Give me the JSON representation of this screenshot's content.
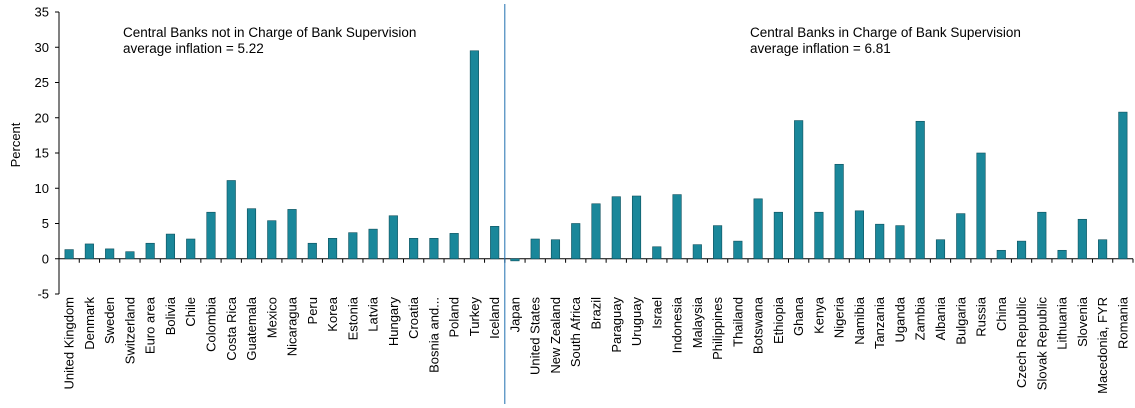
{
  "chart_data": {
    "type": "bar",
    "ylabel": "Percent",
    "xlabel": "",
    "ylim": [
      -5,
      35
    ],
    "yticks": [
      -5,
      0,
      5,
      10,
      15,
      20,
      25,
      30,
      35
    ],
    "grid": false,
    "bar_color": "#1a879a",
    "divider_after_index": 21,
    "annotations": [
      {
        "lines": [
          "Central Banks not in Charge of Bank Supervision",
          "average inflation = 5.22"
        ],
        "group": "left"
      },
      {
        "lines": [
          "Central Banks in Charge of Bank Supervision",
          "average inflation = 6.81"
        ],
        "group": "right"
      }
    ],
    "categories": [
      "United Kingdom",
      "Denmark",
      "Sweden",
      "Switzerland",
      "Euro area",
      "Bolivia",
      "Chile",
      "Colombia",
      "Costa Rica",
      "Guatemala",
      "Mexico",
      "Nicaragua",
      "Peru",
      "Korea",
      "Estonia",
      "Latvia",
      "Hungary",
      "Croatia",
      "Bosnia and...",
      "Poland",
      "Turkey",
      "Iceland",
      "Japan",
      "United States",
      "New Zealand",
      "South Africa",
      "Brazil",
      "Paraguay",
      "Uruguay",
      "Israel",
      "Indonesia",
      "Malaysia",
      "Philippines",
      "Thailand",
      "Botswana",
      "Ethiopia",
      "Ghana",
      "Kenya",
      "Nigeria",
      "Namibia",
      "Tanzania",
      "Uganda",
      "Zambia",
      "Albania",
      "Bulgaria",
      "Russia",
      "China",
      "Czech Republic",
      "Slovak Republic",
      "Lithuania",
      "Slovenia",
      "Macedonia, FYR",
      "Romania"
    ],
    "values": [
      1.3,
      2.1,
      1.4,
      1.0,
      2.2,
      3.5,
      2.8,
      6.6,
      11.1,
      7.1,
      5.4,
      7.0,
      2.2,
      2.9,
      3.7,
      4.2,
      6.1,
      2.9,
      2.9,
      3.6,
      29.5,
      4.6,
      -0.3,
      2.8,
      2.7,
      5.0,
      7.8,
      8.8,
      8.9,
      1.7,
      9.1,
      2.0,
      4.7,
      2.5,
      8.5,
      6.6,
      19.6,
      6.6,
      13.4,
      6.8,
      4.9,
      4.7,
      19.5,
      2.7,
      6.4,
      15.0,
      1.2,
      2.5,
      6.6,
      1.2,
      5.6,
      2.7,
      20.8
    ]
  }
}
